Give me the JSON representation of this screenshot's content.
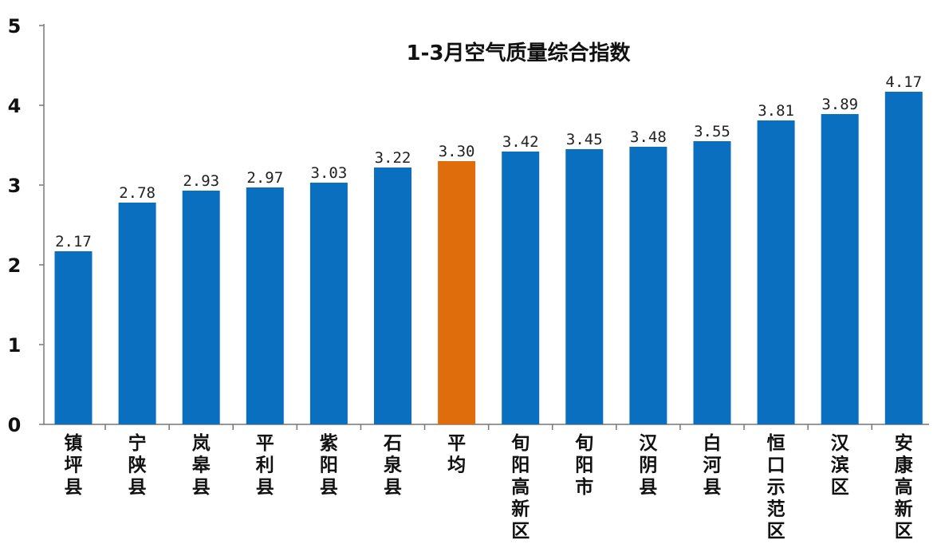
{
  "chart_data": {
    "type": "bar",
    "title": "1-3月空气质量综合指数",
    "xlabel": "",
    "ylabel": "",
    "ylim": [
      0,
      5
    ],
    "yticks": [
      "0",
      "1",
      "2",
      "3",
      "4",
      "5"
    ],
    "grid": false,
    "categories": [
      "镇坪县",
      "宁陕县",
      "岚皋县",
      "平利县",
      "紫阳县",
      "石泉县",
      "平均",
      "旬阳高新区",
      "旬阳市",
      "汉阴县",
      "白河县",
      "恒口示范区",
      "汉滨区",
      "安康高新区"
    ],
    "values": [
      2.17,
      2.78,
      2.93,
      2.97,
      3.03,
      3.22,
      3.3,
      3.42,
      3.45,
      3.48,
      3.55,
      3.81,
      3.89,
      4.17
    ],
    "value_labels": [
      "2.17",
      "2.78",
      "2.93",
      "2.97",
      "3.03",
      "3.22",
      "3.30",
      "3.42",
      "3.45",
      "3.48",
      "3.55",
      "3.81",
      "3.89",
      "4.17"
    ],
    "highlight_category": "平均",
    "colors": {
      "bar": "#0b6fc0",
      "highlight": "#e06d0c"
    }
  }
}
